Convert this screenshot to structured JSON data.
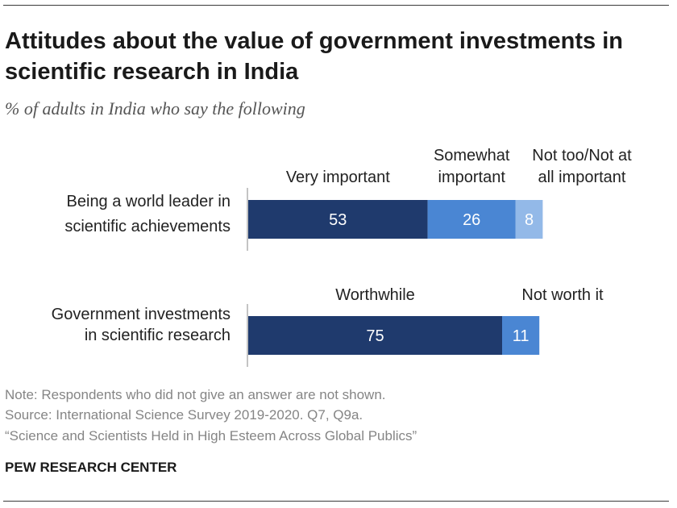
{
  "header": {
    "title": "Attitudes about the value of government investments in scientific research in India",
    "subtitle": "% of adults in India who say the following"
  },
  "footer": {
    "note": "Note: Respondents who did not give an answer are not shown.",
    "source": "Source: International Science Survey 2019-2020. Q7, Q9a.",
    "report": "“Science and Scientists Held in High Esteem Across Global Publics”",
    "credit": "PEW RESEARCH CENTER"
  },
  "colors": {
    "dark_blue": "#1f3a6d",
    "mid_blue": "#4a86d3",
    "light_blue": "#93b9e8"
  },
  "chart_data": [
    {
      "type": "bar",
      "orientation": "horizontal",
      "stacked": true,
      "categories": [
        "Being a world leader in scientific achievements"
      ],
      "category_lines": [
        [
          "Being a world leader in",
          "scientific achievements"
        ]
      ],
      "series": [
        {
          "name": "Very important",
          "values": [
            53
          ],
          "color": "#1f3a6d"
        },
        {
          "name": "Somewhat important",
          "values": [
            26
          ],
          "color": "#4a86d3"
        },
        {
          "name": "Not too/Not at all important",
          "values": [
            8
          ],
          "color": "#93b9e8"
        }
      ],
      "legend_lines": [
        [
          "Very important"
        ],
        [
          "Somewhat",
          "important"
        ],
        [
          "Not too/Not at",
          "all important"
        ]
      ]
    },
    {
      "type": "bar",
      "orientation": "horizontal",
      "stacked": true,
      "categories": [
        "Government investments in scientific research"
      ],
      "category_lines": [
        [
          "Government investments",
          "in scientific research"
        ]
      ],
      "series": [
        {
          "name": "Worthwhile",
          "values": [
            75
          ],
          "color": "#1f3a6d"
        },
        {
          "name": "Not worth it",
          "values": [
            11
          ],
          "color": "#4a86d3"
        }
      ],
      "legend_lines": [
        [
          "Worthwhile"
        ],
        [
          "Not worth it"
        ]
      ]
    }
  ]
}
